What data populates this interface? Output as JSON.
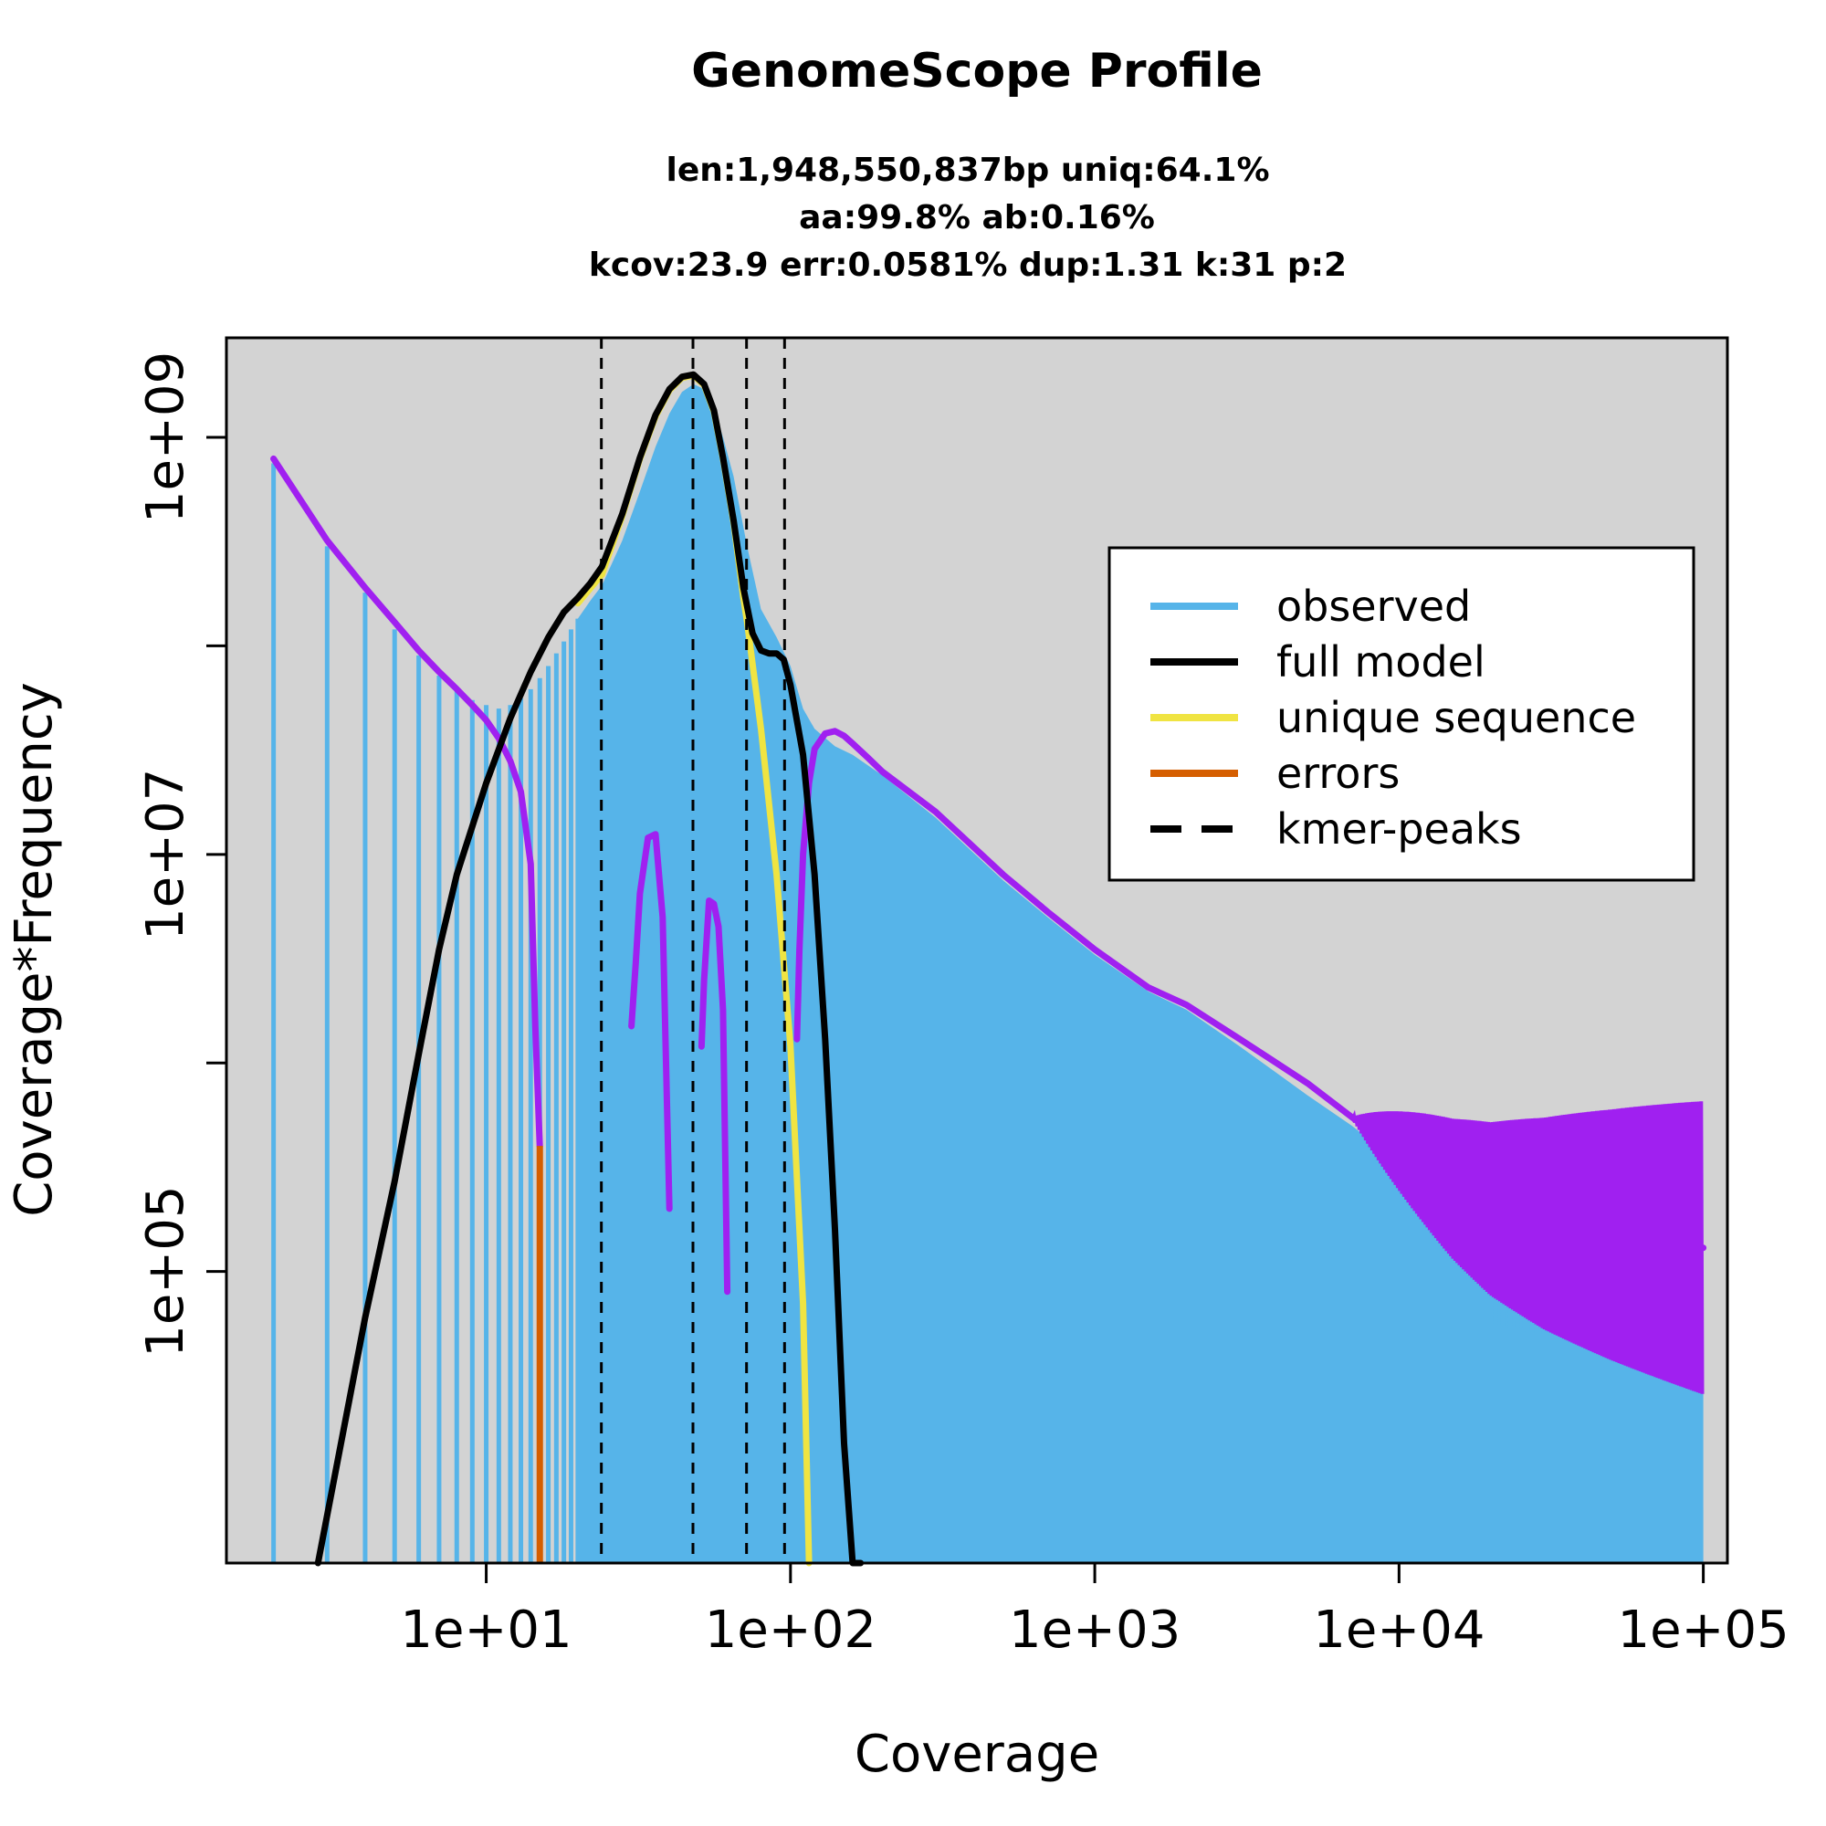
{
  "chart_data": {
    "type": "line",
    "title": "GenomeScope Profile",
    "subtitle_lines": [
      "len:1,948,550,837bp uniq:64.1%",
      "aa:99.8% ab:0.16%",
      "kcov:23.9 err:0.0581%  dup:1.31  k:31 p:2"
    ],
    "xlabel": "Coverage",
    "ylabel": "Coverage*Frequency",
    "x_scale": "log",
    "y_scale": "log",
    "xlim": [
      1.4,
      120000
    ],
    "ylim": [
      4000,
      3000000000
    ],
    "x_ticks": [
      10,
      100,
      1000,
      10000,
      100000
    ],
    "x_tick_labels": [
      "1e+01",
      "1e+02",
      "1e+03",
      "1e+04",
      "1e+05"
    ],
    "y_ticks": [
      100000,
      1000000,
      10000000,
      100000000,
      1000000000
    ],
    "y_tick_labels": [
      "1e+05",
      "",
      "1e+07",
      "",
      "1e+09"
    ],
    "background": "#d3d3d3",
    "colors": {
      "observed": "#56b4e9",
      "full_model": "#000000",
      "unique_sequence": "#f0e442",
      "errors": "#d55e00",
      "residual": "#a020f0",
      "kmer_peaks": "#000000"
    },
    "legend": {
      "position": "top-right",
      "entries": [
        {
          "label": "observed",
          "color": "#56b4e9",
          "style": "solid"
        },
        {
          "label": "full model",
          "color": "#000000",
          "style": "solid"
        },
        {
          "label": "unique sequence",
          "color": "#f0e442",
          "style": "solid"
        },
        {
          "label": "errors",
          "color": "#d55e00",
          "style": "solid"
        },
        {
          "label": "kmer-peaks",
          "color": "#000000",
          "style": "dashed"
        }
      ]
    },
    "kmer_peaks": [
      23.9,
      47.8,
      71.7,
      95.6
    ],
    "series": [
      {
        "name": "observed",
        "x": [
          2,
          3,
          4,
          5,
          6,
          7,
          8,
          9,
          10,
          11,
          12,
          13,
          14,
          15,
          16,
          17,
          18,
          19,
          20,
          22,
          24,
          28,
          32,
          36,
          40,
          44,
          48,
          52,
          56,
          60,
          65,
          72,
          80,
          90,
          100,
          110,
          120,
          140,
          160,
          200,
          300,
          500,
          700,
          1000,
          1500,
          2000,
          3000,
          5000,
          7000,
          10000,
          15000,
          20000,
          30000,
          50000,
          70000,
          100000
        ],
        "y": [
          750000000,
          300000000,
          180000000,
          120000000,
          90000000,
          72000000,
          62000000,
          55000000,
          52000000,
          50000000,
          52000000,
          56000000,
          62000000,
          70000000,
          80000000,
          92000000,
          105000000,
          120000000,
          135000000,
          165000000,
          195000000,
          320000000,
          550000000,
          900000000,
          1300000000,
          1650000000,
          1800000000,
          1700000000,
          1400000000,
          1000000000,
          650000000,
          300000000,
          150000000,
          110000000,
          80000000,
          50000000,
          40000000,
          33000000,
          30000000,
          24000000,
          15000000,
          7500000,
          5000000,
          3300000,
          2200000,
          1800000,
          1200000,
          700000,
          500000,
          330000,
          200000,
          160000,
          140000,
          120000,
          110000,
          100000
        ]
      },
      {
        "name": "full model",
        "x": [
          2.8,
          4,
          5,
          6,
          7,
          8,
          10,
          12,
          14,
          16,
          18,
          20,
          22,
          24,
          28,
          32,
          36,
          40,
          44,
          48,
          52,
          56,
          60,
          65,
          70,
          75,
          80,
          85,
          90,
          95,
          100,
          110,
          120,
          130,
          140,
          150,
          160,
          170
        ],
        "y": [
          4000,
          60000,
          270000,
          1100000,
          3500000,
          8000000,
          22000000,
          45000000,
          75000000,
          110000000,
          145000000,
          170000000,
          200000000,
          240000000,
          430000000,
          800000000,
          1280000000,
          1700000000,
          1950000000,
          2000000000,
          1800000000,
          1350000000,
          800000000,
          400000000,
          190000000,
          115000000,
          95000000,
          92000000,
          92000000,
          86000000,
          65000000,
          30000000,
          8000000,
          1300000,
          160000,
          15000,
          4000,
          2000
        ]
      },
      {
        "name": "unique sequence",
        "x": [
          20,
          24,
          28,
          32,
          36,
          40,
          44,
          48,
          52,
          56,
          60,
          65,
          70,
          72,
          80,
          90,
          100,
          110,
          115
        ],
        "y": [
          160000000,
          220000000,
          420000000,
          790000000,
          1260000000,
          1680000000,
          1930000000,
          1980000000,
          1780000000,
          1330000000,
          790000000,
          390000000,
          170000000,
          130000000,
          40000000,
          8000000,
          1200000,
          70000,
          4000
        ]
      },
      {
        "name": "errors",
        "x": [
          15,
          15.05
        ],
        "y": [
          4000,
          400000
        ]
      },
      {
        "name": "residual",
        "x": [
          2,
          3,
          4,
          5,
          6,
          7,
          8,
          9,
          10,
          11,
          12,
          13,
          14,
          14.5,
          15
        ],
        "y": [
          790000000,
          320000000,
          190000000,
          130000000,
          95000000,
          75000000,
          62000000,
          52000000,
          44000000,
          36000000,
          28000000,
          20000000,
          9000000,
          1500000,
          400000
        ]
      },
      {
        "name": "residual",
        "x": [
          30,
          31,
          32,
          34,
          36,
          38,
          40
        ],
        "y": [
          1500000,
          3000000,
          6500000,
          12000000,
          12500000,
          5000000,
          200000
        ]
      },
      {
        "name": "residual",
        "x": [
          51,
          52,
          54,
          56,
          58,
          60,
          62
        ],
        "y": [
          1200000,
          2500000,
          6000000,
          5800000,
          4500000,
          1800000,
          80000
        ]
      },
      {
        "name": "residual",
        "x": [
          105,
          107,
          110,
          115,
          120,
          130,
          140,
          150,
          160,
          180,
          200,
          300,
          500,
          700,
          1000,
          1500,
          2000,
          3000,
          5000,
          7000,
          10000,
          15000,
          20000,
          30000,
          50000,
          70000,
          100000
        ],
        "y": [
          1300000,
          3500000,
          10000000,
          22000000,
          32000000,
          38000000,
          39000000,
          37000000,
          34000000,
          29000000,
          25000000,
          16000000,
          8000000,
          5300000,
          3500000,
          2300000,
          1900000,
          1300000,
          800000,
          550000,
          380000,
          250000,
          200000,
          170000,
          150000,
          140000,
          130000
        ]
      }
    ]
  }
}
